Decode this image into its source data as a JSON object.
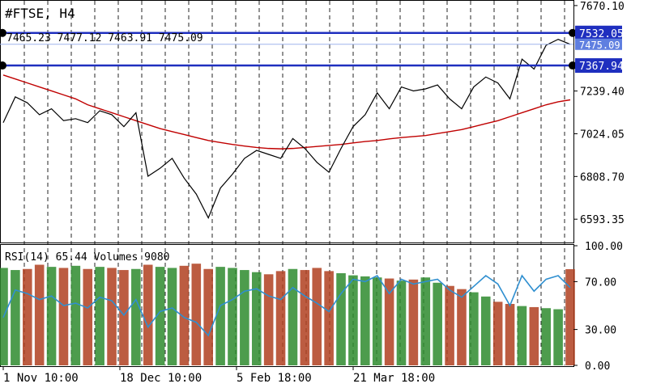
{
  "header": {
    "symbol_timeframe": "#FTSE, H4",
    "ohlc": "7465.23 7477.12 7463.91 7475.09"
  },
  "indicator_header": "RSI(14) 65.44 Volumes 9080",
  "colors": {
    "background": "#ffffff",
    "price_line": "#000000",
    "moving_average": "#c00000",
    "hline": "#1f2fbf",
    "hline_label_bg": "#1f2fbf",
    "current_price_label_bg": "#5f7fe0",
    "rsi_line": "#2f8fd0",
    "volume_up": "#2e8b2e",
    "volume_down": "#b04020",
    "grid": "#000000"
  },
  "horizontal_lines": [
    {
      "price": 7532.05,
      "label": "7532.05"
    },
    {
      "price": 7367.94,
      "label": "7367.94"
    }
  ],
  "current_price": {
    "price": 7475.09,
    "label": "7475.09"
  },
  "main_axis": {
    "ylim": [
      6480,
      7690
    ],
    "ticks": [
      {
        "value": 7670.1,
        "label": "7670.10"
      },
      {
        "value": 7239.4,
        "label": "7239.40"
      },
      {
        "value": 7024.05,
        "label": "7024.05"
      },
      {
        "value": 6808.7,
        "label": "6808.70"
      },
      {
        "value": 6593.35,
        "label": "6593.35"
      }
    ]
  },
  "sub_axis": {
    "ylim": [
      0,
      100
    ],
    "ticks": [
      {
        "value": 100,
        "label": "100.00"
      },
      {
        "value": 70,
        "label": "70.00"
      },
      {
        "value": 30,
        "label": "30.00"
      },
      {
        "value": 0,
        "label": "0.00"
      }
    ]
  },
  "x_labels": [
    {
      "index": 0,
      "label": "1 Nov 10:00"
    },
    {
      "index": 72,
      "label": "18 Dec 10:00"
    },
    {
      "index": 144,
      "label": "5 Feb 18:00"
    },
    {
      "index": 216,
      "label": "21 Mar 18:00"
    }
  ],
  "chart_data": {
    "type": "line",
    "title": "#FTSE, H4",
    "x": [
      "1 Nov 10:00",
      "",
      "",
      "",
      "",
      "",
      "",
      "",
      "",
      "",
      "",
      "",
      "18 Dec 10:00",
      "",
      "",
      "",
      "",
      "",
      "",
      "",
      "",
      "",
      "",
      "",
      "5 Feb 18:00",
      "",
      "",
      "",
      "",
      "",
      "",
      "",
      "",
      "",
      "",
      "",
      "21 Mar 18:00",
      "",
      "",
      "",
      "",
      "",
      "",
      "",
      "",
      "",
      "",
      ""
    ],
    "series": [
      {
        "values": [
          7080,
          7210,
          7180,
          7120,
          7150,
          7090,
          7100,
          7080,
          7140,
          7120,
          7060,
          7130,
          6810,
          6850,
          6900,
          6800,
          6720,
          6600,
          6750,
          6820,
          6900,
          6940,
          6920,
          6900,
          7000,
          6950,
          6880,
          6830,
          6950,
          7060,
          7120,
          7230,
          7150,
          7260,
          7240,
          7250,
          7270,
          7200,
          7150,
          7260,
          7310,
          7280,
          7200,
          7400,
          7350,
          7470,
          7500,
          7475
        ]
      },
      {
        "values": [
          7320,
          7300,
          7280,
          7260,
          7240,
          7220,
          7200,
          7170,
          7150,
          7130,
          7110,
          7090,
          7070,
          7050,
          7035,
          7020,
          7005,
          6990,
          6980,
          6970,
          6962,
          6955,
          6950,
          6948,
          6950,
          6955,
          6960,
          6965,
          6970,
          6978,
          6985,
          6990,
          6998,
          7005,
          7010,
          7015,
          7025,
          7035,
          7045,
          7060,
          7075,
          7090,
          7110,
          7130,
          7150,
          7170,
          7185,
          7195
        ]
      },
      {
        "values": [
          40,
          63,
          60,
          55,
          58,
          50,
          52,
          48,
          57,
          54,
          42,
          55,
          32,
          45,
          48,
          40,
          36,
          25,
          50,
          55,
          62,
          64,
          58,
          55,
          65,
          58,
          52,
          45,
          60,
          72,
          70,
          75,
          60,
          72,
          68,
          70,
          72,
          63,
          57,
          66,
          75,
          68,
          50,
          75,
          62,
          72,
          75,
          65
        ]
      },
      {
        "values": [
          9200,
          9000,
          9100,
          9500,
          9300,
          9200,
          9400,
          9100,
          9300,
          9200,
          9000,
          9100,
          9500,
          9300,
          9200,
          9400,
          9600,
          9100,
          9300,
          9200,
          9000,
          8800,
          8600,
          8900,
          9100,
          9000,
          9200,
          8900,
          8700,
          8500,
          8400,
          8300,
          8200,
          8000,
          8100,
          8300,
          7800,
          7500,
          7200,
          6900,
          6500,
          6000,
          5800,
          5600,
          5500,
          5400,
          5300,
          9080
        ]
      }
    ]
  }
}
